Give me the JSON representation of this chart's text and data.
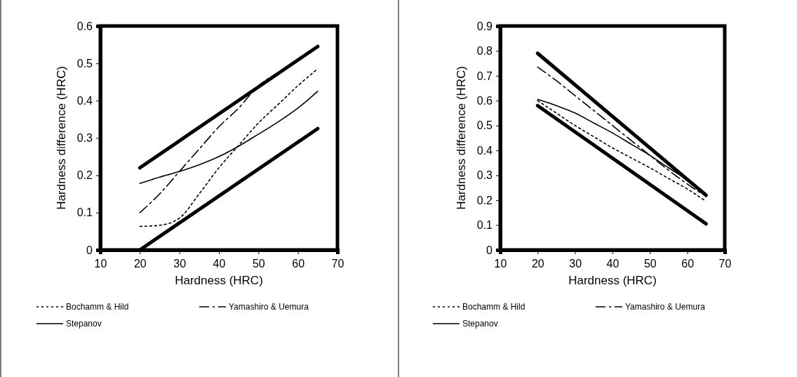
{
  "chart_data": [
    {
      "type": "line",
      "xlabel": "Hardness (HRC)",
      "ylabel": "Hardness difference (HRC)",
      "xlim": [
        10,
        70
      ],
      "xticks": [
        10,
        20,
        30,
        40,
        50,
        60,
        70
      ],
      "ylim": [
        0,
        0.6
      ],
      "yticks": [
        0,
        0.1,
        0.2,
        0.3,
        0.4,
        0.5,
        0.6
      ],
      "legend": "bottom",
      "grid": false,
      "marker": "none",
      "series": [
        {
          "color": "#000000",
          "line_style": "solid",
          "x": [
            20,
            65
          ],
          "values": [
            0.22,
            0.545
          ]
        },
        {
          "color": "#000000",
          "line_style": "solid",
          "x": [
            20,
            65
          ],
          "values": [
            0.0,
            0.325
          ]
        },
        {
          "name": "Bochamm & Hild",
          "color": "#000000",
          "line_style": "dotted",
          "x": [
            20,
            25,
            30,
            35,
            40,
            45,
            50,
            55,
            60,
            65
          ],
          "values": [
            0.063,
            0.066,
            0.085,
            0.15,
            0.22,
            0.28,
            0.34,
            0.39,
            0.44,
            0.485
          ]
        },
        {
          "name": "Yamashiro & Uemura",
          "color": "#000000",
          "line_style": "dashed",
          "x": [
            20,
            25,
            30,
            35,
            40,
            45,
            50,
            55,
            60,
            65
          ],
          "values": [
            0.1,
            0.15,
            0.21,
            0.27,
            0.33,
            0.38,
            0.44,
            0.475,
            0.51,
            0.545
          ]
        },
        {
          "name": "Stepanov",
          "color": "#000000",
          "line_style": "solid",
          "x": [
            20,
            25,
            30,
            35,
            40,
            45,
            50,
            55,
            60,
            65
          ],
          "values": [
            0.178,
            0.195,
            0.21,
            0.228,
            0.25,
            0.278,
            0.31,
            0.343,
            0.38,
            0.425
          ]
        }
      ]
    },
    {
      "type": "line",
      "xlabel": "Hardness (HRC)",
      "ylabel": "Hardness difference (HRC)",
      "xlim": [
        10,
        70
      ],
      "xticks": [
        10,
        20,
        30,
        40,
        50,
        60,
        70
      ],
      "ylim": [
        0,
        0.9
      ],
      "yticks": [
        0,
        0.1,
        0.2,
        0.3,
        0.4,
        0.5,
        0.6,
        0.7,
        0.8,
        0.9
      ],
      "legend": "bottom",
      "grid": false,
      "marker": "none",
      "series": [
        {
          "color": "#000000",
          "line_style": "solid",
          "x": [
            20,
            65
          ],
          "values": [
            0.79,
            0.22
          ]
        },
        {
          "color": "#000000",
          "line_style": "solid",
          "x": [
            20,
            65
          ],
          "values": [
            0.58,
            0.105
          ]
        },
        {
          "name": "Bochamm & Hild",
          "color": "#000000",
          "line_style": "dotted",
          "x": [
            20,
            25,
            30,
            35,
            40,
            45,
            50,
            55,
            60,
            65
          ],
          "values": [
            0.6,
            0.55,
            0.5,
            0.455,
            0.41,
            0.37,
            0.33,
            0.287,
            0.245,
            0.195
          ]
        },
        {
          "name": "Yamashiro & Uemura",
          "color": "#000000",
          "line_style": "dashed",
          "x": [
            20,
            25,
            30,
            35,
            40,
            45,
            50,
            55,
            60,
            65
          ],
          "values": [
            0.735,
            0.68,
            0.62,
            0.56,
            0.5,
            0.44,
            0.38,
            0.32,
            0.265,
            0.215
          ]
        },
        {
          "name": "Stepanov",
          "color": "#000000",
          "line_style": "solid",
          "x": [
            20,
            25,
            30,
            35,
            40,
            45,
            50,
            55,
            60,
            65
          ],
          "values": [
            0.605,
            0.58,
            0.55,
            0.51,
            0.47,
            0.425,
            0.38,
            0.33,
            0.28,
            0.215
          ]
        }
      ]
    }
  ]
}
